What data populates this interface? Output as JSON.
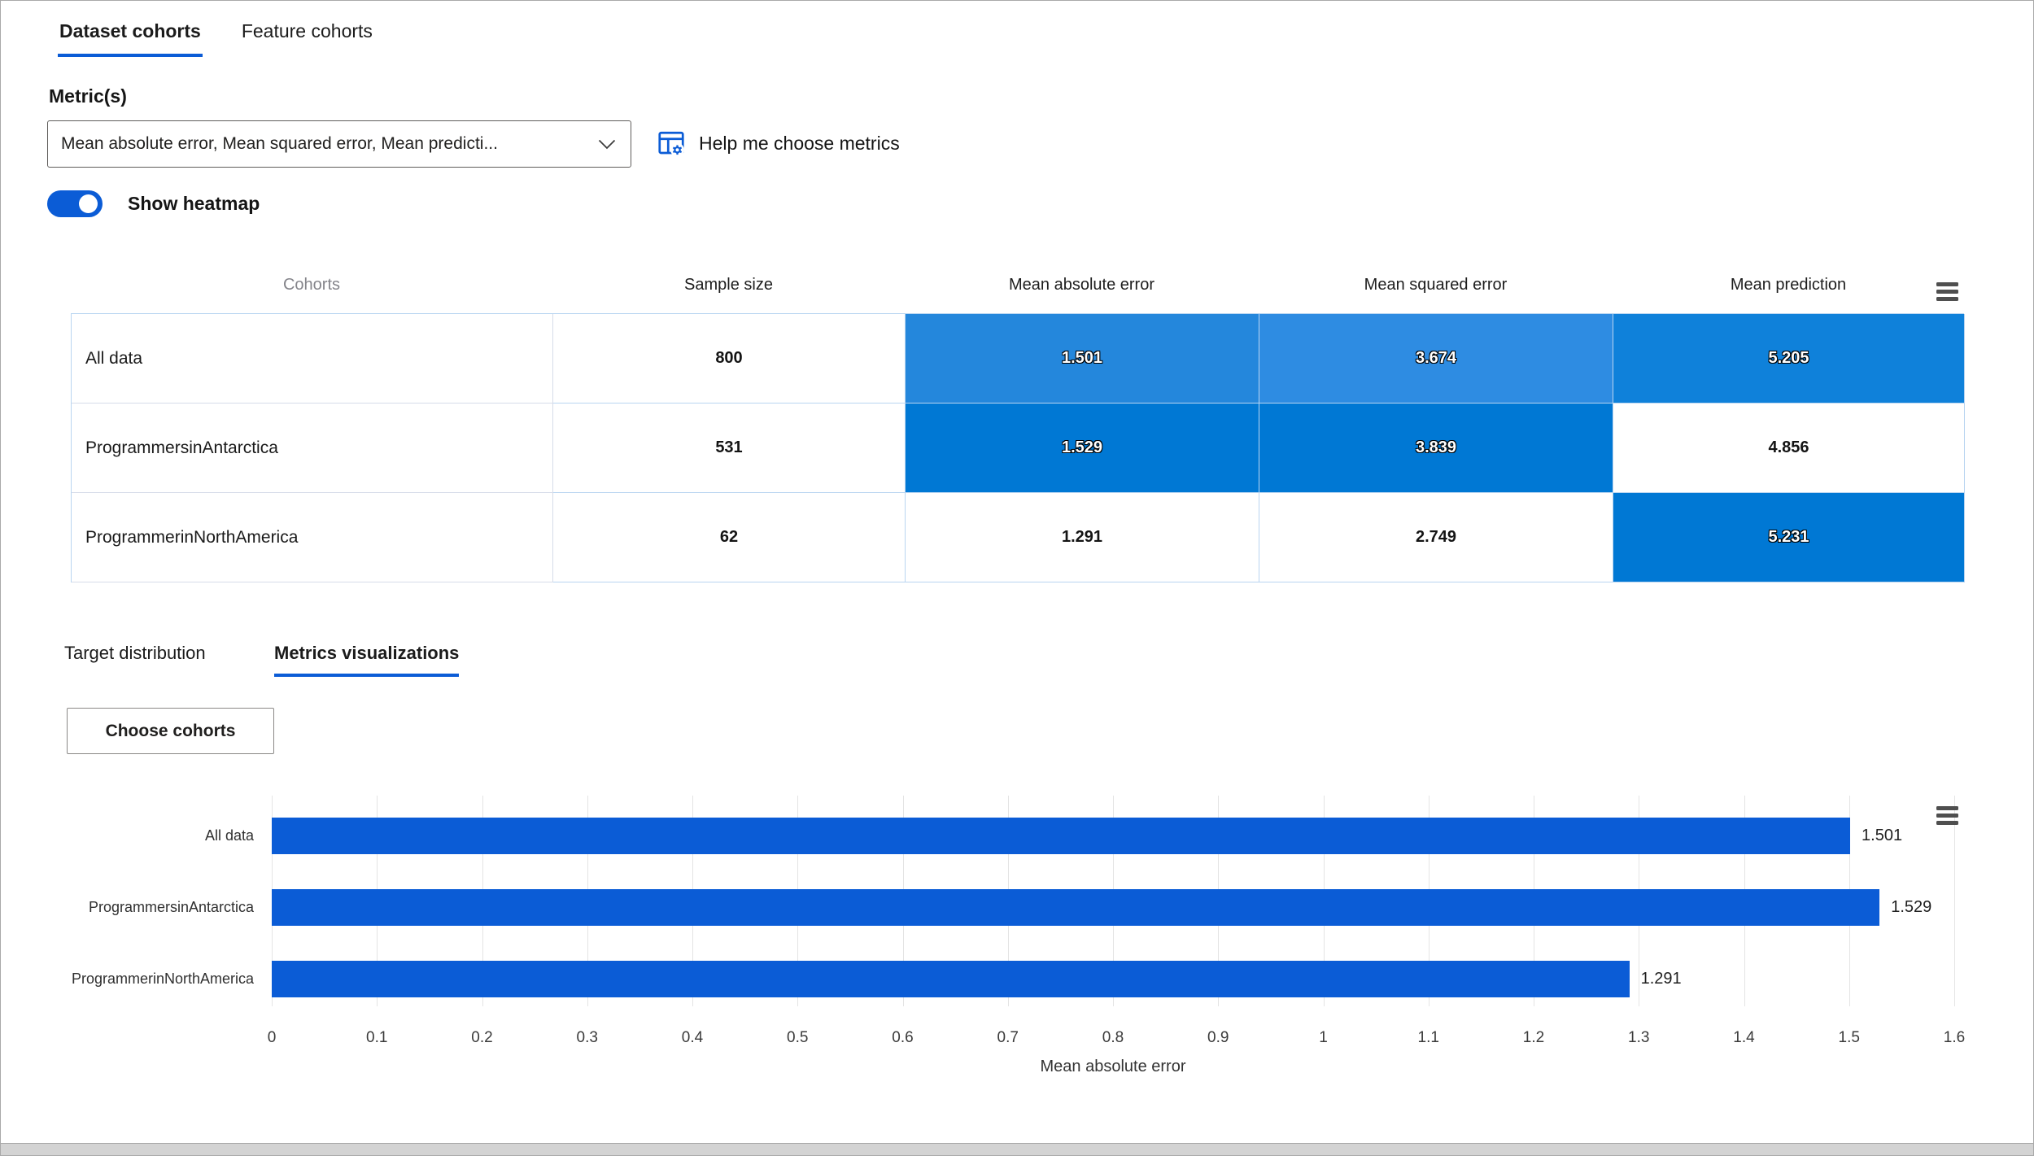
{
  "accent_color": "#0b5cd6",
  "tabs_primary": {
    "dataset_cohorts": "Dataset cohorts",
    "feature_cohorts": "Feature cohorts"
  },
  "metrics_picker": {
    "label": "Metric(s)",
    "dropdown_value": "Mean absolute error, Mean squared error, Mean predicti...",
    "help_label": "Help me choose metrics"
  },
  "heatmap_toggle": {
    "label": "Show heatmap",
    "state": "on"
  },
  "icons": {
    "dropdown_chevron": "chevron-down-icon",
    "help": "table-settings-icon",
    "table_menu": "menu-icon",
    "chart_menu": "menu-icon"
  },
  "table": {
    "columns": [
      "Cohorts",
      "Sample size",
      "Mean absolute error",
      "Mean squared error",
      "Mean prediction"
    ],
    "heatmap_colors": {
      "darkest": "#0078d4",
      "light": "#2e8ce2",
      "none": "#ffffff"
    },
    "rows": [
      {
        "cohort": "All data",
        "sample_size": "800",
        "cells": [
          {
            "value": "1.501",
            "bg": "#2487dc",
            "fg": "#ffffff"
          },
          {
            "value": "3.674",
            "bg": "#2e8ce2",
            "fg": "#ffffff"
          },
          {
            "value": "5.205",
            "bg": "#0f81da",
            "fg": "#ffffff"
          }
        ]
      },
      {
        "cohort": "ProgrammersinAntarctica",
        "sample_size": "531",
        "cells": [
          {
            "value": "1.529",
            "bg": "#0078d4",
            "fg": "#ffffff"
          },
          {
            "value": "3.839",
            "bg": "#0078d4",
            "fg": "#ffffff"
          },
          {
            "value": "4.856",
            "bg": "#ffffff",
            "fg": "#141414"
          }
        ]
      },
      {
        "cohort": "ProgrammerinNorthAmerica",
        "sample_size": "62",
        "cells": [
          {
            "value": "1.291",
            "bg": "#ffffff",
            "fg": "#141414"
          },
          {
            "value": "2.749",
            "bg": "#ffffff",
            "fg": "#141414"
          },
          {
            "value": "5.231",
            "bg": "#0078d4",
            "fg": "#ffffff"
          }
        ]
      }
    ]
  },
  "tabs_secondary": {
    "target_distribution": "Target distribution",
    "metrics_visualizations": "Metrics visualizations"
  },
  "choose_cohorts_button": "Choose cohorts",
  "chart_data": {
    "type": "bar",
    "orientation": "horizontal",
    "categories": [
      "All data",
      "ProgrammersinAntarctica",
      "ProgrammerinNorthAmerica"
    ],
    "values": [
      1.501,
      1.529,
      1.291
    ],
    "value_labels": [
      "1.501",
      "1.529",
      "1.291"
    ],
    "title": "",
    "xlabel": "Mean absolute error",
    "ylabel": "",
    "xlim": [
      0,
      1.6
    ],
    "xticks": [
      "0",
      "0.1",
      "0.2",
      "0.3",
      "0.4",
      "0.5",
      "0.6",
      "0.7",
      "0.8",
      "0.9",
      "1",
      "1.1",
      "1.2",
      "1.3",
      "1.4",
      "1.5",
      "1.6"
    ],
    "bar_color": "#0b5cd6",
    "grid": true,
    "legend": "none"
  }
}
